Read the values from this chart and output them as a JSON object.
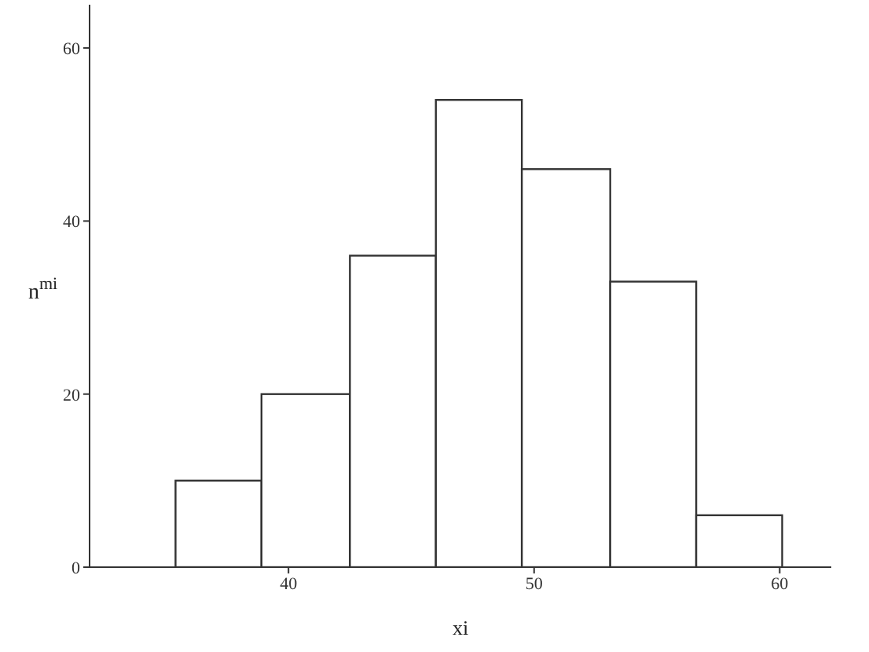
{
  "chart_data": {
    "type": "histogram",
    "xlabel": "xi",
    "ylabel": "n$^{mi}$",
    "bins": [
      35.4,
      38.9,
      42.5,
      46.0,
      49.5,
      53.1,
      56.6,
      60.1
    ],
    "values": [
      10,
      20,
      36,
      54,
      46,
      33,
      6
    ],
    "color": "#ffffff",
    "xlim": [
      31.9,
      62.1
    ],
    "xticks": [
      40,
      50,
      60
    ],
    "ylim": [
      0,
      65
    ],
    "yticks": [
      0,
      20,
      40,
      60
    ],
    "grid": false,
    "legend": false
  }
}
